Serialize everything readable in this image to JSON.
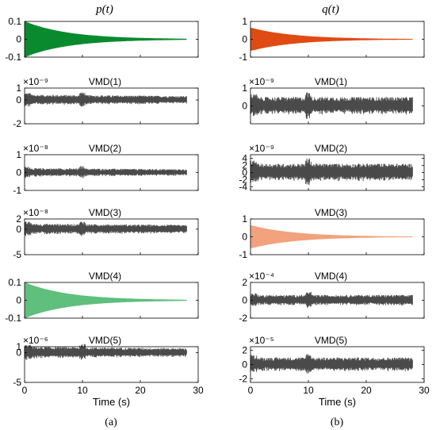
{
  "figure": {
    "columns": [
      {
        "title": "p(t)",
        "caption": "(a)"
      },
      {
        "title": "q(t)",
        "caption": "(b)"
      }
    ]
  },
  "colors": {
    "p_signal": "#0a8a2f",
    "q_signal": "#e04a13",
    "p_mode4": "#5fbf7c",
    "q_mode3": "#f2a27c",
    "noise": "#4a4a4a",
    "axes": "#000000"
  },
  "chart_data": [
    {
      "type": "area",
      "column": "a",
      "title": "p(t)",
      "xlim": [
        0,
        30
      ],
      "xticks": [],
      "ylim": [
        -0.1,
        0.1
      ],
      "yticks": [
        -0.1,
        0,
        0.1
      ],
      "ytick_labels": [
        "-0.1",
        "0",
        "0.1"
      ],
      "exponent": "",
      "xlabel": "",
      "style": "decay",
      "amplitude": 0.1,
      "x_end": 28,
      "color": "#0a8a2f"
    },
    {
      "type": "area",
      "column": "a",
      "title": "VMD(1)",
      "xlim": [
        0,
        30
      ],
      "xticks": [],
      "ylim": [
        -2,
        1
      ],
      "yticks": [
        -2,
        0,
        1
      ],
      "ytick_labels": [
        "-2",
        "0",
        "1"
      ],
      "exponent": "×10⁻⁹",
      "xlabel": "",
      "style": "noise",
      "amplitude": 0.45,
      "x_end": 28,
      "color": "#4a4a4a"
    },
    {
      "type": "area",
      "column": "a",
      "title": "VMD(2)",
      "xlim": [
        0,
        30
      ],
      "xticks": [],
      "ylim": [
        -1,
        1
      ],
      "yticks": [
        -1,
        0,
        1
      ],
      "ytick_labels": [
        "-1",
        "0",
        "1"
      ],
      "exponent": "×10⁻⁸",
      "xlabel": "",
      "style": "noise",
      "amplitude": 0.25,
      "x_end": 28,
      "color": "#4a4a4a"
    },
    {
      "type": "area",
      "column": "a",
      "title": "VMD(3)",
      "xlim": [
        0,
        30
      ],
      "xticks": [],
      "ylim": [
        -5,
        2
      ],
      "yticks": [
        -5,
        0,
        2
      ],
      "ytick_labels": [
        "-5",
        "0",
        "2"
      ],
      "exponent": "×10⁻⁸",
      "xlabel": "",
      "style": "noise",
      "amplitude": 1.1,
      "x_end": 28,
      "color": "#4a4a4a"
    },
    {
      "type": "area",
      "column": "a",
      "title": "VMD(4)",
      "xlim": [
        0,
        30
      ],
      "xticks": [],
      "ylim": [
        -0.1,
        0.1
      ],
      "yticks": [
        -0.1,
        0,
        0.1
      ],
      "ytick_labels": [
        "-0.1",
        "0",
        "0.1"
      ],
      "exponent": "",
      "xlabel": "",
      "style": "decay",
      "amplitude": 0.1,
      "x_end": 28,
      "color": "#5fbf7c"
    },
    {
      "type": "area",
      "column": "a",
      "title": "VMD(5)",
      "xlim": [
        0,
        30
      ],
      "xticks": [
        0,
        10,
        20,
        30
      ],
      "ylim": [
        -5,
        1
      ],
      "yticks": [
        -5,
        0,
        1
      ],
      "ytick_labels": [
        "-5",
        "0",
        "1"
      ],
      "exponent": "×10⁻⁶",
      "xlabel": "Time (s)",
      "style": "noise",
      "amplitude": 1.0,
      "x_end": 28,
      "color": "#4a4a4a"
    },
    {
      "type": "area",
      "column": "b",
      "title": "q(t)",
      "xlim": [
        0,
        30
      ],
      "xticks": [],
      "ylim": [
        -1,
        1
      ],
      "yticks": [
        -1,
        0,
        1
      ],
      "ytick_labels": [
        "-1",
        "0",
        "1"
      ],
      "exponent": "",
      "xlabel": "",
      "style": "decay",
      "amplitude": 0.65,
      "x_end": 28,
      "color": "#e04a13"
    },
    {
      "type": "area",
      "column": "b",
      "title": "VMD(1)",
      "xlim": [
        0,
        30
      ],
      "xticks": [],
      "ylim": [
        -1,
        1
      ],
      "yticks": [
        0,
        1
      ],
      "ytick_labels": [
        "0",
        "1"
      ],
      "exponent": "×10⁻⁹",
      "xlabel": "",
      "style": "noise",
      "amplitude": 0.5,
      "x_end": 28,
      "color": "#4a4a4a"
    },
    {
      "type": "area",
      "column": "b",
      "title": "VMD(2)",
      "xlim": [
        0,
        30
      ],
      "xticks": [],
      "ylim": [
        -5,
        5
      ],
      "yticks": [
        -4,
        -2,
        0,
        2,
        4
      ],
      "ytick_labels": [
        "-4",
        "-2",
        "0",
        "2",
        "4"
      ],
      "exponent": "×10⁻⁹",
      "xlabel": "",
      "style": "noise",
      "amplitude": 2.5,
      "x_end": 28,
      "color": "#4a4a4a"
    },
    {
      "type": "area",
      "column": "b",
      "title": "VMD(3)",
      "xlim": [
        0,
        30
      ],
      "xticks": [],
      "ylim": [
        -1,
        1
      ],
      "yticks": [
        -1,
        0,
        1
      ],
      "ytick_labels": [
        "-1",
        "0",
        "1"
      ],
      "exponent": "",
      "xlabel": "",
      "style": "decay",
      "amplitude": 0.65,
      "x_end": 28,
      "color": "#f2a27c"
    },
    {
      "type": "area",
      "column": "b",
      "title": "VMD(4)",
      "xlim": [
        0,
        30
      ],
      "xticks": [],
      "ylim": [
        -2,
        2
      ],
      "yticks": [
        -2,
        0,
        2
      ],
      "ytick_labels": [
        "-2",
        "0",
        "2"
      ],
      "exponent": "×10⁻⁴",
      "xlabel": "",
      "style": "noise",
      "amplitude": 0.6,
      "x_end": 28,
      "color": "#4a4a4a"
    },
    {
      "type": "area",
      "column": "b",
      "title": "VMD(5)",
      "xlim": [
        0,
        30
      ],
      "xticks": [
        0,
        10,
        20,
        30
      ],
      "ylim": [
        -2.5,
        2.5
      ],
      "yticks": [
        -2,
        0,
        2
      ],
      "ytick_labels": [
        "-2",
        "0",
        "2"
      ],
      "exponent": "×10⁻⁵",
      "xlabel": "Time (s)",
      "style": "noise",
      "amplitude": 1.0,
      "x_end": 28,
      "color": "#4a4a4a"
    }
  ]
}
